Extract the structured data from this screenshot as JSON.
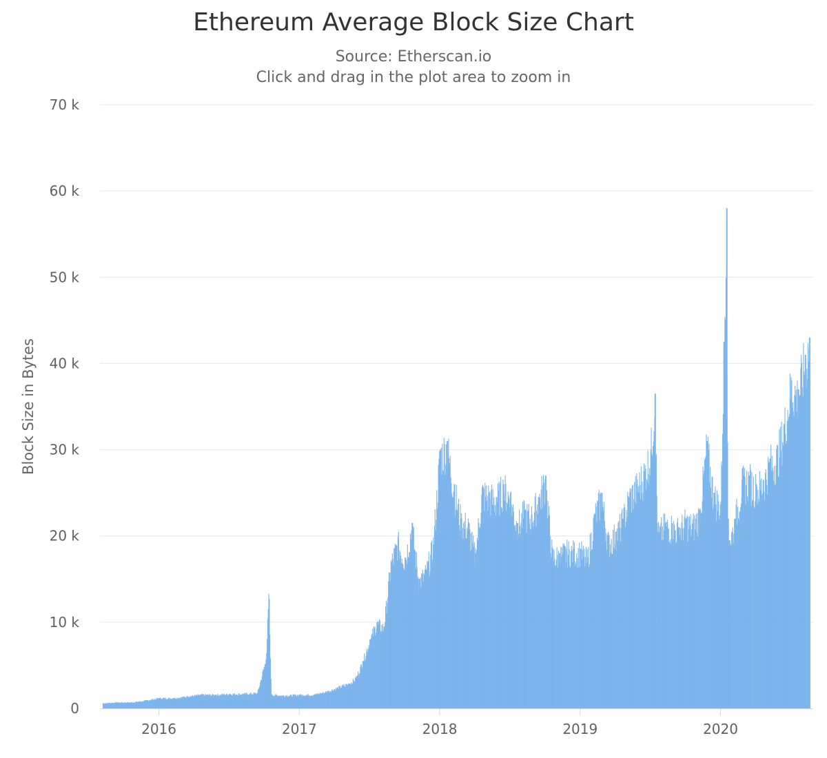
{
  "chart_data": {
    "type": "bar",
    "title": "Ethereum Average Block Size Chart",
    "subtitle": "Source: Etherscan.io",
    "instruction": "Click and drag in the plot area to zoom in",
    "ylabel": "Block Size in Bytes",
    "xlabel": "",
    "ylim": [
      0,
      70000
    ],
    "yticks": [
      0,
      10000,
      20000,
      30000,
      40000,
      50000,
      60000,
      70000
    ],
    "ytick_labels": [
      "0",
      "10 k",
      "20 k",
      "30 k",
      "40 k",
      "50 k",
      "60 k",
      "70 k"
    ],
    "xlim": [
      2015.58,
      2020.66
    ],
    "xticks": [
      2016,
      2017,
      2018,
      2019,
      2020
    ],
    "xtick_labels": [
      "2016",
      "2017",
      "2018",
      "2019",
      "2020"
    ],
    "bar_color": "#7cb5ec",
    "grid": true,
    "legend": "none",
    "series": [
      {
        "name": "Average Block Size",
        "x": [
          2015.6,
          2015.7,
          2015.8,
          2015.9,
          2016.0,
          2016.1,
          2016.2,
          2016.3,
          2016.4,
          2016.5,
          2016.6,
          2016.7,
          2016.76,
          2016.78,
          2016.8,
          2016.9,
          2017.0,
          2017.1,
          2017.2,
          2017.3,
          2017.35,
          2017.4,
          2017.45,
          2017.5,
          2017.55,
          2017.6,
          2017.65,
          2017.7,
          2017.75,
          2017.8,
          2017.85,
          2017.9,
          2017.95,
          2018.0,
          2018.05,
          2018.1,
          2018.15,
          2018.2,
          2018.25,
          2018.3,
          2018.35,
          2018.4,
          2018.45,
          2018.5,
          2018.55,
          2018.6,
          2018.65,
          2018.7,
          2018.75,
          2018.8,
          2018.85,
          2018.9,
          2018.95,
          2019.0,
          2019.05,
          2019.1,
          2019.15,
          2019.2,
          2019.25,
          2019.3,
          2019.35,
          2019.4,
          2019.45,
          2019.5,
          2019.53,
          2019.55,
          2019.6,
          2019.65,
          2019.7,
          2019.75,
          2019.8,
          2019.85,
          2019.9,
          2019.95,
          2020.0,
          2020.04,
          2020.05,
          2020.06,
          2020.1,
          2020.15,
          2020.2,
          2020.25,
          2020.3,
          2020.35,
          2020.4,
          2020.45,
          2020.5,
          2020.55,
          2020.6,
          2020.63
        ],
        "values": [
          600,
          700,
          700,
          900,
          1200,
          1200,
          1400,
          1600,
          1600,
          1700,
          1700,
          1800,
          5700,
          12700,
          1600,
          1500,
          1600,
          1600,
          2000,
          2600,
          2900,
          3500,
          5500,
          8000,
          10000,
          9500,
          17000,
          19500,
          17500,
          21500,
          15000,
          16000,
          19000,
          30000,
          31000,
          26000,
          22000,
          21500,
          18000,
          25500,
          25000,
          24500,
          26000,
          25000,
          21500,
          23000,
          22500,
          24500,
          27000,
          18000,
          18000,
          18500,
          18500,
          18500,
          17500,
          22500,
          25000,
          19500,
          20500,
          22000,
          25000,
          26000,
          27500,
          30000,
          36500,
          20500,
          21500,
          21500,
          21000,
          22000,
          21500,
          23000,
          31000,
          25000,
          24000,
          58000,
          22000,
          19500,
          22000,
          26500,
          27000,
          26000,
          26500,
          29000,
          29500,
          33000,
          38000,
          37000,
          41000,
          43000
        ]
      }
    ]
  }
}
